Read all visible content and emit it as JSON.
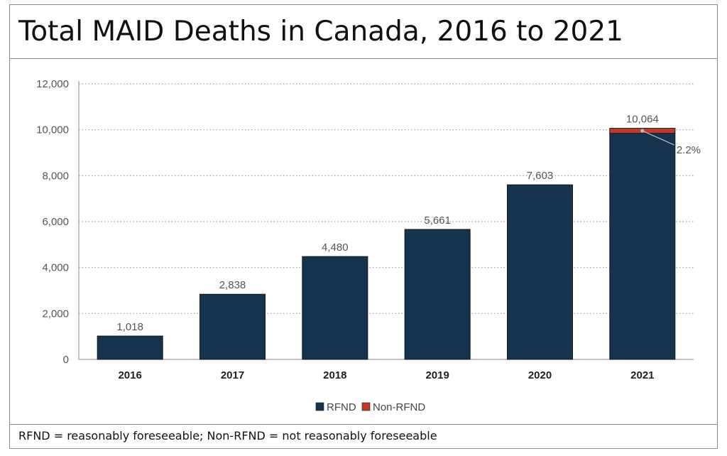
{
  "chart_data": {
    "type": "bar",
    "stacked": true,
    "title": "Total MAID Deaths in Canada, 2016 to 2021",
    "categories": [
      "2016",
      "2017",
      "2018",
      "2019",
      "2020",
      "2021"
    ],
    "series": [
      {
        "name": "RFND",
        "values": [
          1018,
          2838,
          4480,
          5661,
          7603,
          9842
        ],
        "color": "#17324d"
      },
      {
        "name": "Non-RFND",
        "values": [
          0,
          0,
          0,
          0,
          0,
          222
        ],
        "color": "#c0392b"
      }
    ],
    "data_labels": [
      "1,018",
      "2,838",
      "4,480",
      "5,661",
      "7,603",
      "10,064"
    ],
    "annotation": {
      "category": "2021",
      "text": "2.2%"
    },
    "yticks": [
      "0",
      "2,000",
      "4,000",
      "6,000",
      "8,000",
      "10,000",
      "12,000"
    ],
    "ylim": [
      0,
      12000
    ],
    "grid": true,
    "legend": "bottom-center",
    "xlabel": "",
    "ylabel": ""
  },
  "footnote": "RFND = reasonably foreseeable; Non-RFND = not reasonably foreseeable"
}
